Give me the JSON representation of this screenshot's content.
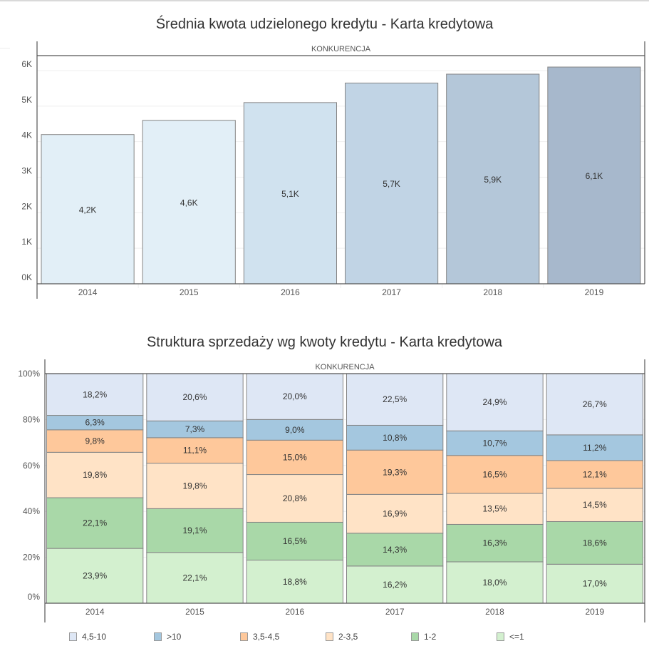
{
  "chart_data": [
    {
      "type": "bar",
      "title": "Średnia kwota udzielonego kredytu - Karta kredytowa",
      "panel_header": "KONKURENCJA",
      "xlabel": "",
      "ylabel": "",
      "categories": [
        "2014",
        "2015",
        "2016",
        "2017",
        "2018",
        "2019"
      ],
      "values": [
        4200,
        4600,
        5100,
        5650,
        5900,
        6100
      ],
      "data_labels": [
        "4,2K",
        "4,6K",
        "5,1K",
        "5,7K",
        "5,9K",
        "6,1K"
      ],
      "bar_colors": [
        "#e2eff7",
        "#e2eff7",
        "#d0e2ef",
        "#c1d4e5",
        "#b4c7d9",
        "#a7b8cc"
      ],
      "y_ticks": [
        0,
        1000,
        2000,
        3000,
        4000,
        5000,
        6000
      ],
      "y_tick_labels": [
        "0K",
        "1K",
        "2K",
        "3K",
        "4K",
        "5K",
        "6K"
      ],
      "ylim": [
        0,
        6000
      ],
      "grid": true
    },
    {
      "type": "bar",
      "stacked": true,
      "title": "Struktura sprzedaży wg kwoty kredytu - Karta kredytowa",
      "panel_header": "KONKURENCJA",
      "xlabel": "",
      "ylabel": "",
      "categories": [
        "2014",
        "2015",
        "2016",
        "2017",
        "2018",
        "2019"
      ],
      "series": [
        {
          "name": "<=1",
          "color": "#d3f0cf",
          "values": [
            23.9,
            22.1,
            18.8,
            16.2,
            18.0,
            17.0
          ],
          "labels": [
            "23,9%",
            "22,1%",
            "18,8%",
            "16,2%",
            "18,0%",
            "17,0%"
          ]
        },
        {
          "name": "1-2",
          "color": "#a9d8a8",
          "values": [
            22.1,
            19.1,
            16.5,
            14.3,
            16.3,
            18.6
          ],
          "labels": [
            "22,1%",
            "19,1%",
            "16,5%",
            "14,3%",
            "16,3%",
            "18,6%"
          ]
        },
        {
          "name": "2-3,5",
          "color": "#ffe3c6",
          "values": [
            19.8,
            19.8,
            20.8,
            16.9,
            13.5,
            14.5
          ],
          "labels": [
            "19,8%",
            "19,8%",
            "20,8%",
            "16,9%",
            "13,5%",
            "14,5%"
          ]
        },
        {
          "name": "3,5-4,5",
          "color": "#fec89b",
          "values": [
            9.8,
            11.1,
            15.0,
            19.3,
            16.5,
            12.1
          ],
          "labels": [
            "9,8%",
            "11,1%",
            "15,0%",
            "19,3%",
            "16,5%",
            "12,1%"
          ]
        },
        {
          "name": ">10",
          "color": "#a4c7df",
          "values": [
            6.3,
            7.3,
            9.0,
            10.8,
            10.7,
            11.2
          ],
          "labels": [
            "6,3%",
            "7,3%",
            "9,0%",
            "10,8%",
            "10,7%",
            "11,2%"
          ]
        },
        {
          "name": "4,5-10",
          "color": "#dee7f5",
          "values": [
            18.2,
            20.6,
            20.0,
            22.5,
            24.9,
            26.7
          ],
          "labels": [
            "18,2%",
            "20,6%",
            "20,0%",
            "22,5%",
            "24,9%",
            "26,7%"
          ]
        }
      ],
      "y_ticks": [
        0,
        20,
        40,
        60,
        80,
        100
      ],
      "y_tick_labels": [
        "0%",
        "20%",
        "40%",
        "60%",
        "80%",
        "100%"
      ],
      "ylim": [
        0,
        100
      ],
      "grid": true,
      "legend_position": "bottom",
      "legend": [
        {
          "label": "4,5-10",
          "color": "#dee7f5"
        },
        {
          "label": ">10",
          "color": "#a4c7df"
        },
        {
          "label": "3,5-4,5",
          "color": "#fec89b"
        },
        {
          "label": "2-3,5",
          "color": "#ffe3c6"
        },
        {
          "label": "1-2",
          "color": "#a9d8a8"
        },
        {
          "label": "<=1",
          "color": "#d3f0cf"
        }
      ]
    }
  ]
}
